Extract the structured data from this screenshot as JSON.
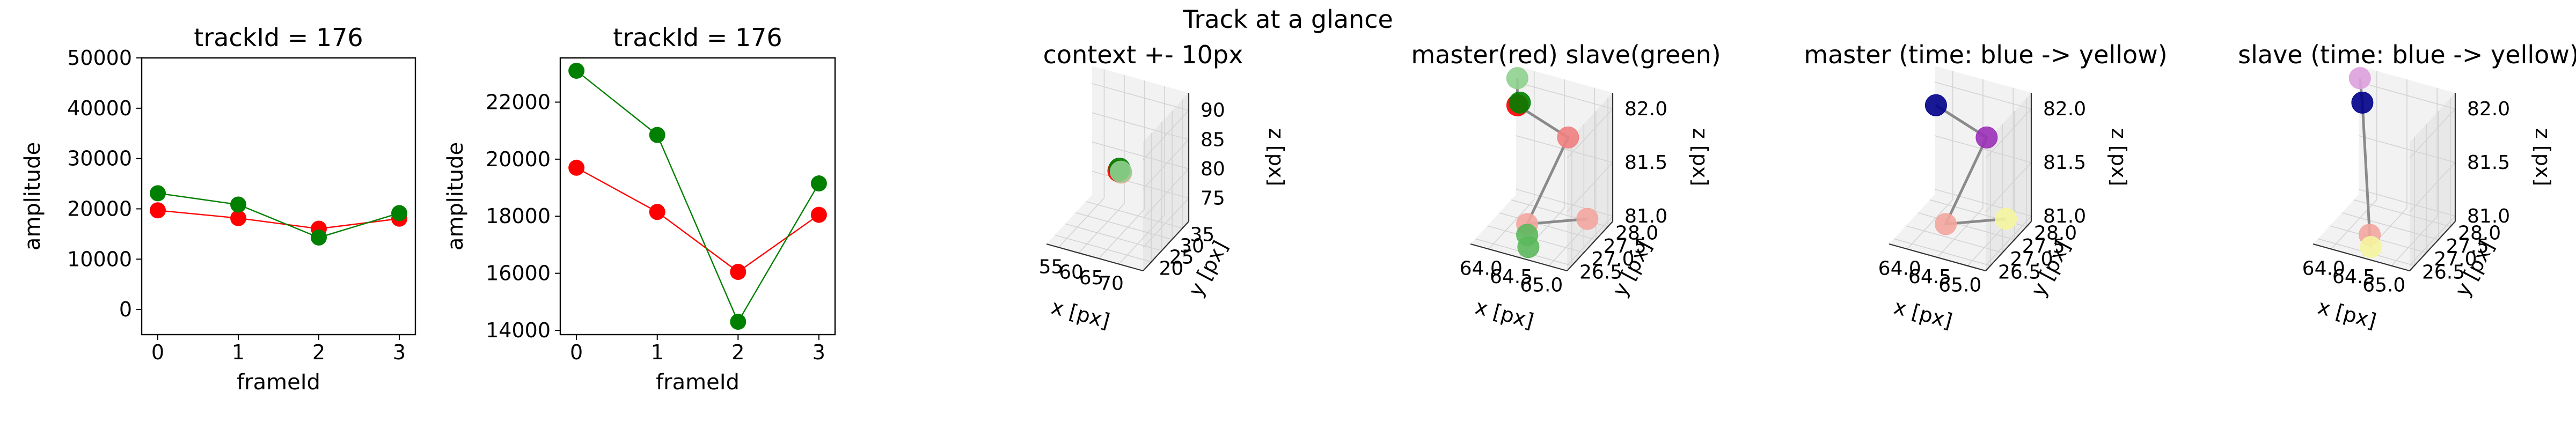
{
  "suptitle": "Track at a glance",
  "colors": {
    "red": "#ff0000",
    "green": "#008000",
    "navy": "#00008b",
    "purple": "#9b30b8",
    "pink_light": "#f4a6a0",
    "green_light": "#8fd18f",
    "violet_light": "#dda0dd",
    "yellow_light": "#f5f5a0",
    "grey_path": "#8a8a8a",
    "pane": "#f2f2f2",
    "grid": "#d3d3d3"
  },
  "chart_data": [
    {
      "type": "line",
      "title": "trackId = 176",
      "xlabel": "frameId",
      "ylabel": "amplitude",
      "x": [
        0,
        1,
        2,
        3
      ],
      "xticks": [
        "0",
        "1",
        "2",
        "3"
      ],
      "xlim": [
        -0.2,
        3.2
      ],
      "ylim": [
        -5000,
        50000
      ],
      "yticks": [
        0,
        10000,
        20000,
        30000,
        40000,
        50000
      ],
      "ytick_labels": [
        "0",
        "10000",
        "20000",
        "30000",
        "40000",
        "50000"
      ],
      "series": [
        {
          "color": "#ff0000",
          "values": [
            19700,
            18150,
            16050,
            18050
          ]
        },
        {
          "color": "#008000",
          "values": [
            23100,
            20850,
            14300,
            19150
          ]
        }
      ]
    },
    {
      "type": "line",
      "title": "trackId = 176",
      "xlabel": "frameId",
      "ylabel": "amplitude",
      "x": [
        0,
        1,
        2,
        3
      ],
      "xticks": [
        "0",
        "1",
        "2",
        "3"
      ],
      "xlim": [
        -0.2,
        3.2
      ],
      "ylim": [
        13850,
        23550
      ],
      "yticks": [
        14000,
        16000,
        18000,
        20000,
        22000
      ],
      "ytick_labels": [
        "14000",
        "16000",
        "18000",
        "20000",
        "22000"
      ],
      "series": [
        {
          "color": "#ff0000",
          "values": [
            19700,
            18150,
            16050,
            18050
          ]
        },
        {
          "color": "#008000",
          "values": [
            23100,
            20850,
            14300,
            19150
          ]
        }
      ]
    },
    {
      "type": "scatter",
      "projection": "3d",
      "title": "context +- 10px",
      "xlabel": "x [px]",
      "ylabel": "y [px]",
      "zlabel": "z [px]",
      "xlim": [
        52,
        76
      ],
      "ylim": [
        16,
        38
      ],
      "zlim": [
        71,
        93
      ],
      "xticks": [
        55,
        60,
        65,
        70
      ],
      "yticks": [
        20,
        25,
        30,
        35
      ],
      "zticks": [
        75,
        80,
        85,
        90
      ],
      "points": [
        {
          "x": 64.6,
          "y": 27.5,
          "z": 81.2,
          "color": "#f4a6a0"
        },
        {
          "x": 64.2,
          "y": 27.0,
          "z": 81.6,
          "color": "#ff0000"
        },
        {
          "x": 64.3,
          "y": 27.3,
          "z": 81.9,
          "color": "#008000"
        },
        {
          "x": 64.5,
          "y": 27.6,
          "z": 81.3,
          "color": "#8fd18f"
        }
      ],
      "path": [
        [
          64.3,
          27.3,
          81.9
        ],
        [
          64.6,
          27.5,
          81.2
        ],
        [
          64.5,
          27.6,
          81.3
        ]
      ]
    },
    {
      "type": "scatter",
      "projection": "3d",
      "title": "master(red) slave(green)",
      "xlabel": "x [px]",
      "ylabel": "y [px]",
      "zlabel": "z [px]",
      "xlim": [
        63.7,
        65.3
      ],
      "ylim": [
        26.3,
        28.2
      ],
      "zlim": [
        80.95,
        82.15
      ],
      "xticks": [
        64.0,
        64.5,
        65.0
      ],
      "ytick_labels": [
        "26.5",
        "27.0",
        "27.5",
        "28.0"
      ],
      "yticks": [
        26.5,
        27.0,
        27.5,
        28.0
      ],
      "zticks": [
        81.0,
        81.5,
        82.0
      ],
      "xtick_labels": [
        "64.0",
        "64.5",
        "65.0"
      ],
      "ztick_labels": [
        "81.0",
        "81.5",
        "82.0"
      ],
      "points": [
        {
          "x": 64.0,
          "y": 27.5,
          "z": 82.0,
          "color": "#ff0000"
        },
        {
          "x": 64.8,
          "y": 27.6,
          "z": 81.8,
          "color": "#f08080"
        },
        {
          "x": 64.4,
          "y": 26.9,
          "z": 81.1,
          "color": "#f4a6a0"
        },
        {
          "x": 65.0,
          "y": 27.9,
          "z": 81.0,
          "color": "#f4a6a0"
        },
        {
          "x": 64.0,
          "y": 27.6,
          "z": 82.0,
          "color": "#008000"
        },
        {
          "x": 63.8,
          "y": 28.0,
          "z": 82.1,
          "color": "#8fd18f"
        },
        {
          "x": 64.4,
          "y": 26.9,
          "z": 81.0,
          "color": "#5cb85c"
        },
        {
          "x": 64.5,
          "y": 26.7,
          "z": 80.95,
          "color": "#5cb85c"
        }
      ],
      "path": [
        [
          63.8,
          28.0,
          82.1
        ],
        [
          64.0,
          27.5,
          82.0
        ],
        [
          64.8,
          27.6,
          81.8
        ],
        [
          64.4,
          26.9,
          81.1
        ],
        [
          65.0,
          27.9,
          81.0
        ]
      ]
    },
    {
      "type": "scatter",
      "projection": "3d",
      "title": "master (time: blue -> yellow)",
      "xlabel": "x [px]",
      "ylabel": "y [px]",
      "zlabel": "z [px]",
      "xlim": [
        63.7,
        65.3
      ],
      "ylim": [
        26.3,
        28.2
      ],
      "zlim": [
        80.95,
        82.15
      ],
      "xticks": [
        64.0,
        64.5,
        65.0
      ],
      "xtick_labels": [
        "64.0",
        "64.5",
        "65.0"
      ],
      "yticks": [
        26.5,
        27.0,
        27.5,
        28.0
      ],
      "ytick_labels": [
        "26.5",
        "27.0",
        "27.5",
        "28.0"
      ],
      "zticks": [
        81.0,
        81.5,
        82.0
      ],
      "ztick_labels": [
        "81.0",
        "81.5",
        "82.0"
      ],
      "points": [
        {
          "x": 64.0,
          "y": 27.5,
          "z": 82.0,
          "color": "#00008b"
        },
        {
          "x": 64.8,
          "y": 27.6,
          "z": 81.8,
          "color": "#9b30b8"
        },
        {
          "x": 64.4,
          "y": 26.9,
          "z": 81.1,
          "color": "#f4a6a0"
        },
        {
          "x": 65.0,
          "y": 27.9,
          "z": 81.0,
          "color": "#f5f5a0"
        }
      ],
      "path": [
        [
          64.0,
          27.5,
          82.0
        ],
        [
          64.8,
          27.6,
          81.8
        ],
        [
          64.4,
          26.9,
          81.1
        ],
        [
          65.0,
          27.9,
          81.0
        ]
      ]
    },
    {
      "type": "scatter",
      "projection": "3d",
      "title": "slave (time: blue -> yellow)",
      "xlabel": "x [px]",
      "ylabel": "y [px]",
      "zlabel": "z [px]",
      "xlim": [
        63.7,
        65.3
      ],
      "ylim": [
        26.3,
        28.2
      ],
      "zlim": [
        80.95,
        82.15
      ],
      "xticks": [
        64.0,
        64.5,
        65.0
      ],
      "xtick_labels": [
        "64.0",
        "64.5",
        "65.0"
      ],
      "yticks": [
        26.5,
        27.0,
        27.5,
        28.0
      ],
      "ytick_labels": [
        "26.5",
        "27.0",
        "27.5",
        "28.0"
      ],
      "zticks": [
        81.0,
        81.5,
        82.0
      ],
      "ztick_labels": [
        "81.0",
        "81.5",
        "82.0"
      ],
      "points": [
        {
          "x": 64.0,
          "y": 27.6,
          "z": 82.0,
          "color": "#00008b"
        },
        {
          "x": 63.8,
          "y": 28.0,
          "z": 82.1,
          "color": "#dda0dd"
        },
        {
          "x": 64.4,
          "y": 26.9,
          "z": 81.0,
          "color": "#f4a6a0"
        },
        {
          "x": 64.5,
          "y": 26.7,
          "z": 80.95,
          "color": "#f5f5a0"
        }
      ],
      "path": [
        [
          63.8,
          28.0,
          82.1
        ],
        [
          64.0,
          27.6,
          82.0
        ],
        [
          64.4,
          26.9,
          81.0
        ],
        [
          64.5,
          26.7,
          80.95
        ]
      ]
    }
  ]
}
